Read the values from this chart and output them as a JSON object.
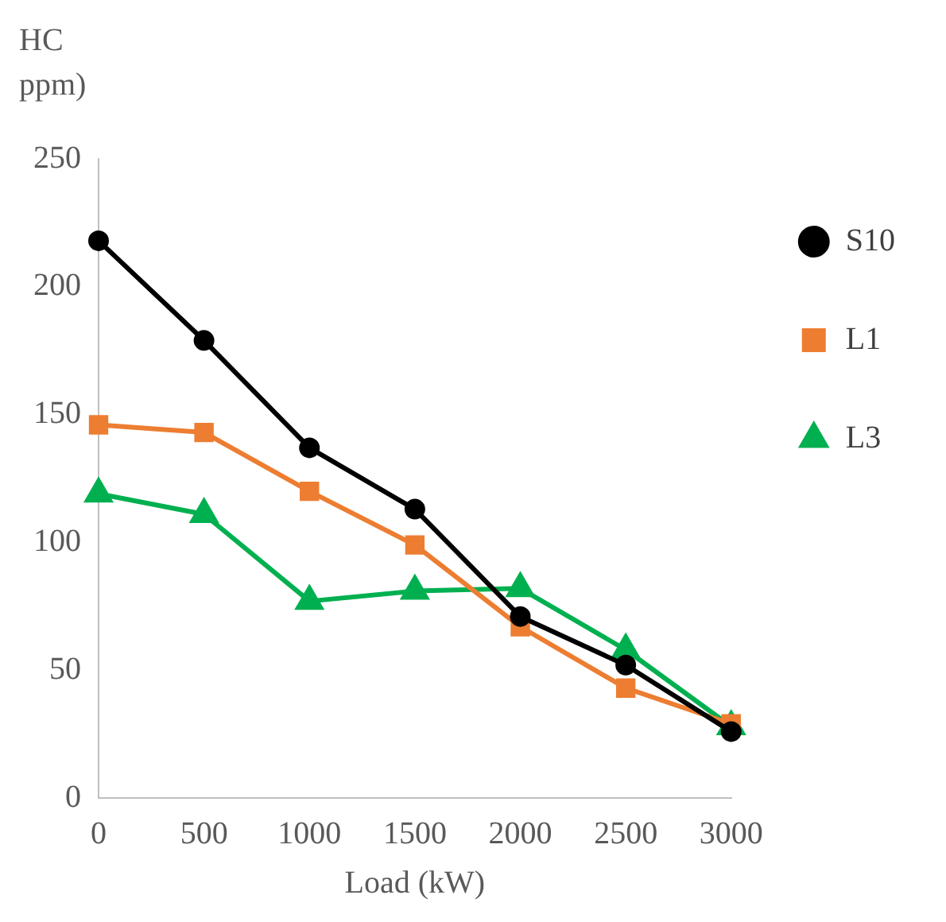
{
  "chart_data": {
    "type": "line",
    "xlabel": "Load (kW)",
    "ylabel": "HC\nppm)",
    "x": [
      0,
      500,
      1000,
      1500,
      2000,
      2500,
      3000
    ],
    "series": [
      {
        "name": "S10",
        "color": "#000000",
        "marker": "circle",
        "values": [
          218,
          179,
          137,
          113,
          71,
          52,
          26
        ]
      },
      {
        "name": "L1",
        "color": "#ed7d31",
        "marker": "square",
        "values": [
          146,
          143,
          120,
          99,
          67,
          43,
          29
        ]
      },
      {
        "name": "L3",
        "color": "#00b050",
        "marker": "triangle",
        "values": [
          119,
          111,
          77,
          81,
          82,
          58,
          28
        ]
      }
    ],
    "xlim": [
      0,
      3000
    ],
    "xticks": [
      0,
      500,
      1000,
      1500,
      2000,
      2500,
      3000
    ],
    "ylim": [
      0,
      250
    ],
    "yticks": [
      0,
      50,
      100,
      150,
      200,
      250
    ],
    "grid": false,
    "legend": "top right",
    "line_style": "solid"
  }
}
